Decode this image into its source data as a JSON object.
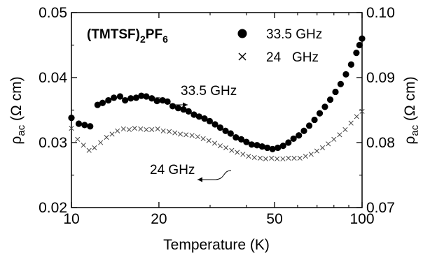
{
  "chart_data": {
    "type": "scatter",
    "title": "",
    "compound_label": {
      "main": "(TMTSF)",
      "sub1": "2",
      "mid": "PF",
      "sub2": "6"
    },
    "xlabel": "Temperature (K)",
    "xscale": "log",
    "xlim": [
      10,
      100
    ],
    "x_ticks": [
      10,
      20,
      50,
      100
    ],
    "x_tick_labels": [
      "10",
      "20",
      "50",
      "100"
    ],
    "ylabel_left": {
      "symbol": "ρ",
      "sub": "ac",
      "rest": " (Ω cm)"
    },
    "ylim_left": [
      0.02,
      0.05
    ],
    "y_ticks_left": [
      0.02,
      0.03,
      0.04,
      0.05
    ],
    "y_tick_labels_left": [
      "0.02",
      "0.03",
      "0.04",
      "0.05"
    ],
    "ylabel_right": {
      "symbol": "ρ",
      "sub": "ac",
      "rest": " (Ω cm)"
    },
    "ylim_right": [
      0.07,
      0.1
    ],
    "y_ticks_right": [
      0.07,
      0.08,
      0.09,
      0.1
    ],
    "y_tick_labels_right": [
      "0.07",
      "0.08",
      "0.09",
      "0.10"
    ],
    "legend": [
      {
        "marker": "●",
        "label": "33.5 GHz"
      },
      {
        "marker": "×",
        "label": "24   GHz"
      }
    ],
    "annotations": [
      {
        "text": "33.5 GHz",
        "series": "33.5 GHz",
        "axis": "right"
      },
      {
        "text": "24 GHz",
        "series": "24 GHz",
        "axis": "left"
      }
    ],
    "series": [
      {
        "name": "33.5 GHz",
        "marker": "filled-circle",
        "axis": "right",
        "x": [
          10.0,
          10.6,
          11.1,
          11.6,
          12.3,
          12.8,
          13.4,
          14.0,
          14.7,
          15.3,
          16.0,
          16.7,
          17.4,
          18.1,
          18.9,
          19.7,
          20.6,
          21.4,
          22.3,
          23.3,
          24.3,
          25.3,
          26.4,
          27.5,
          28.7,
          29.9,
          31.2,
          32.5,
          33.9,
          35.3,
          36.8,
          38.4,
          40.0,
          41.7,
          43.5,
          45.3,
          47.2,
          49.2,
          51.3,
          53.5,
          55.8,
          58.1,
          60.6,
          63.1,
          65.8,
          68.6,
          71.5,
          74.5,
          77.7,
          81.0,
          84.4,
          88.0,
          91.7,
          95.6,
          98.0,
          100.0
        ],
        "y": [
          0.0838,
          0.0829,
          0.0827,
          0.0825,
          0.0858,
          0.0861,
          0.0865,
          0.0869,
          0.0871,
          0.0865,
          0.0868,
          0.0869,
          0.0872,
          0.0871,
          0.0868,
          0.0864,
          0.0865,
          0.0863,
          0.0856,
          0.0853,
          0.0851,
          0.0848,
          0.0843,
          0.084,
          0.0837,
          0.0833,
          0.0828,
          0.0823,
          0.0818,
          0.0814,
          0.0808,
          0.0805,
          0.0801,
          0.0797,
          0.0796,
          0.0794,
          0.0792,
          0.079,
          0.0792,
          0.0795,
          0.08,
          0.0806,
          0.0811,
          0.0818,
          0.0826,
          0.0835,
          0.0845,
          0.0855,
          0.0866,
          0.0878,
          0.089,
          0.0905,
          0.092,
          0.0938,
          0.095,
          0.096
        ]
      },
      {
        "name": "24 GHz",
        "marker": "cross",
        "axis": "left",
        "x": [
          10.0,
          10.5,
          11.0,
          11.5,
          12.0,
          12.6,
          13.2,
          13.8,
          14.4,
          15.1,
          15.8,
          16.5,
          17.3,
          18.1,
          18.9,
          19.8,
          20.7,
          21.7,
          22.7,
          23.7,
          24.8,
          26.0,
          27.2,
          28.4,
          29.7,
          31.1,
          32.5,
          34.0,
          35.6,
          37.2,
          38.9,
          40.7,
          42.6,
          44.6,
          46.6,
          48.8,
          51.0,
          53.4,
          55.8,
          58.4,
          61.1,
          63.9,
          66.8,
          69.9,
          73.1,
          76.5,
          80.0,
          83.7,
          87.5,
          91.6,
          95.8,
          100.0
        ],
        "y": [
          0.0322,
          0.0305,
          0.0296,
          0.0288,
          0.0292,
          0.03,
          0.0308,
          0.0313,
          0.0318,
          0.0321,
          0.032,
          0.0322,
          0.0321,
          0.032,
          0.032,
          0.0321,
          0.0318,
          0.0317,
          0.0315,
          0.0313,
          0.0312,
          0.0311,
          0.0309,
          0.0306,
          0.0303,
          0.0299,
          0.0295,
          0.0292,
          0.0288,
          0.0285,
          0.0282,
          0.0279,
          0.0277,
          0.0276,
          0.0275,
          0.0276,
          0.0275,
          0.0275,
          0.0276,
          0.0276,
          0.0276,
          0.0279,
          0.0282,
          0.0287,
          0.0292,
          0.0298,
          0.0305,
          0.0312,
          0.032,
          0.033,
          0.034,
          0.0348
        ]
      }
    ]
  }
}
